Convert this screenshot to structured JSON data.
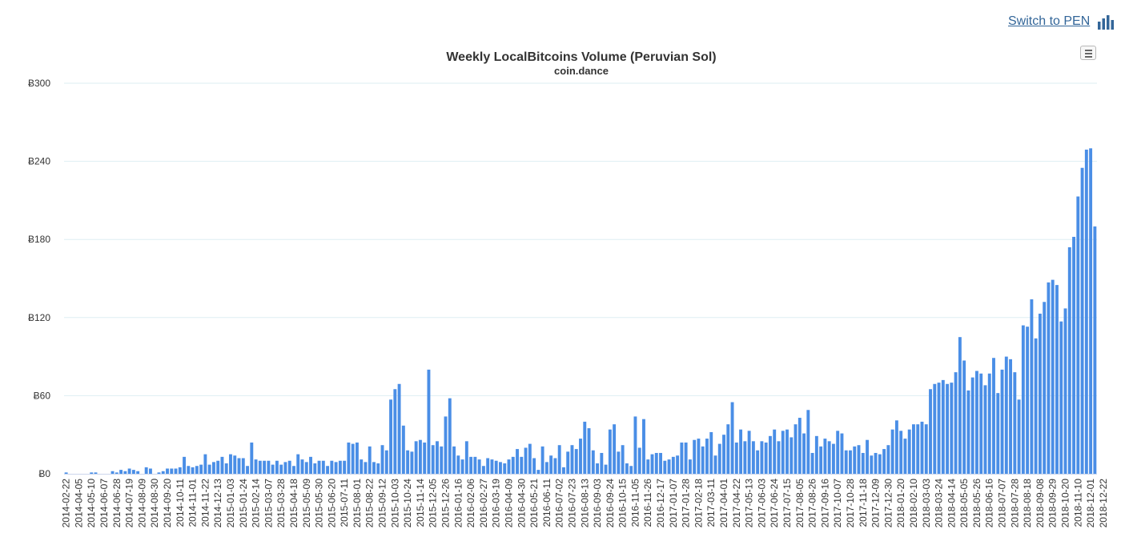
{
  "switch_label": "Switch to PEN",
  "icons": {
    "switch": "bar-chart-icon",
    "menu": "hamburger-menu-icon"
  },
  "colors": {
    "bar": "#4a8ee6",
    "grid": "#ddeef2",
    "title": "#333333",
    "link": "#336699"
  },
  "chart_data": {
    "type": "bar",
    "title": "Weekly LocalBitcoins Volume (Peruvian Sol)",
    "subtitle": "coin.dance",
    "xlabel": "",
    "ylabel": "",
    "ylim": [
      0,
      300
    ],
    "yticks": [
      "Ƀ0",
      "Ƀ60",
      "Ƀ120",
      "Ƀ180",
      "Ƀ240",
      "Ƀ300"
    ],
    "grid": true,
    "legend": "none",
    "start_date": "2014-02-22",
    "tick_labels": [
      "2014-02-22",
      "2014-04-05",
      "2014-05-10",
      "2014-06-07",
      "2014-06-28",
      "2014-07-19",
      "2014-08-09",
      "2014-08-30",
      "2014-09-20",
      "2014-10-11",
      "2014-11-01",
      "2014-11-22",
      "2014-12-13",
      "2015-01-03",
      "2015-01-24",
      "2015-02-14",
      "2015-03-07",
      "2015-03-28",
      "2015-04-18",
      "2015-05-09",
      "2015-05-30",
      "2015-06-20",
      "2015-07-11",
      "2015-08-01",
      "2015-08-22",
      "2015-09-12",
      "2015-10-03",
      "2015-10-24",
      "2015-11-14",
      "2015-12-05",
      "2015-12-26",
      "2016-01-16",
      "2016-02-06",
      "2016-02-27",
      "2016-03-19",
      "2016-04-09",
      "2016-04-30",
      "2016-05-21",
      "2016-06-11",
      "2016-07-02",
      "2016-07-23",
      "2016-08-13",
      "2016-09-03",
      "2016-09-24",
      "2016-10-15",
      "2016-11-05",
      "2016-11-26",
      "2016-12-17",
      "2017-01-07",
      "2017-01-28",
      "2017-02-18",
      "2017-03-11",
      "2017-04-01",
      "2017-04-22",
      "2017-05-13",
      "2017-06-03",
      "2017-06-24",
      "2017-07-15",
      "2017-08-05",
      "2017-08-26",
      "2017-09-16",
      "2017-10-07",
      "2017-10-28",
      "2017-11-18",
      "2017-12-09",
      "2017-12-30",
      "2018-01-20",
      "2018-02-10",
      "2018-03-03",
      "2018-03-24",
      "2018-04-14",
      "2018-05-05",
      "2018-05-26",
      "2018-06-16",
      "2018-07-07",
      "2018-07-28",
      "2018-08-18",
      "2018-09-08",
      "2018-09-29",
      "2018-10-20",
      "2018-11-10",
      "2018-12-01",
      "2018-12-22"
    ],
    "values": [
      1,
      0,
      0,
      0,
      0,
      0,
      1,
      1,
      0,
      0,
      0,
      2,
      1,
      3,
      2,
      4,
      3,
      2,
      0,
      5,
      4,
      0,
      1,
      2,
      4,
      4,
      4,
      5,
      13,
      6,
      5,
      6,
      7,
      15,
      7,
      9,
      10,
      13,
      8,
      15,
      14,
      12,
      12,
      6,
      24,
      11,
      10,
      10,
      10,
      7,
      10,
      7,
      9,
      10,
      6,
      15,
      11,
      9,
      13,
      8,
      10,
      10,
      6,
      10,
      9,
      10,
      10,
      24,
      23,
      24,
      11,
      9,
      21,
      9,
      8,
      22,
      18,
      57,
      65,
      69,
      37,
      18,
      17,
      25,
      26,
      24,
      80,
      22,
      25,
      21,
      44,
      58,
      21,
      14,
      11,
      25,
      13,
      13,
      11,
      6,
      12,
      11,
      10,
      9,
      8,
      11,
      13,
      19,
      13,
      20,
      23,
      12,
      3,
      21,
      9,
      14,
      12,
      22,
      5,
      17,
      22,
      19,
      27,
      40,
      35,
      18,
      8,
      16,
      7,
      34,
      38,
      17,
      22,
      8,
      6,
      44,
      20,
      42,
      11,
      15,
      16,
      16,
      10,
      11,
      13,
      14,
      24,
      24,
      11,
      26,
      27,
      21,
      27,
      32,
      14,
      23,
      30,
      38,
      55,
      24,
      34,
      25,
      33,
      25,
      18,
      25,
      24,
      29,
      34,
      25,
      33,
      34,
      28,
      38,
      43,
      31,
      49,
      16,
      29,
      21,
      27,
      25,
      23,
      33,
      31,
      18,
      18,
      21,
      22,
      16,
      26,
      14,
      16,
      15,
      19,
      22,
      34,
      41,
      33,
      27,
      34,
      38,
      38,
      40,
      38,
      65,
      69,
      70,
      72,
      69,
      70,
      78,
      105,
      87,
      64,
      74,
      79,
      77,
      68,
      77,
      89,
      62,
      80,
      90,
      88,
      78,
      57,
      114,
      113,
      134,
      104,
      123,
      132,
      147,
      149,
      145,
      117,
      127,
      174,
      182,
      213,
      235,
      249,
      250,
      190
    ]
  }
}
